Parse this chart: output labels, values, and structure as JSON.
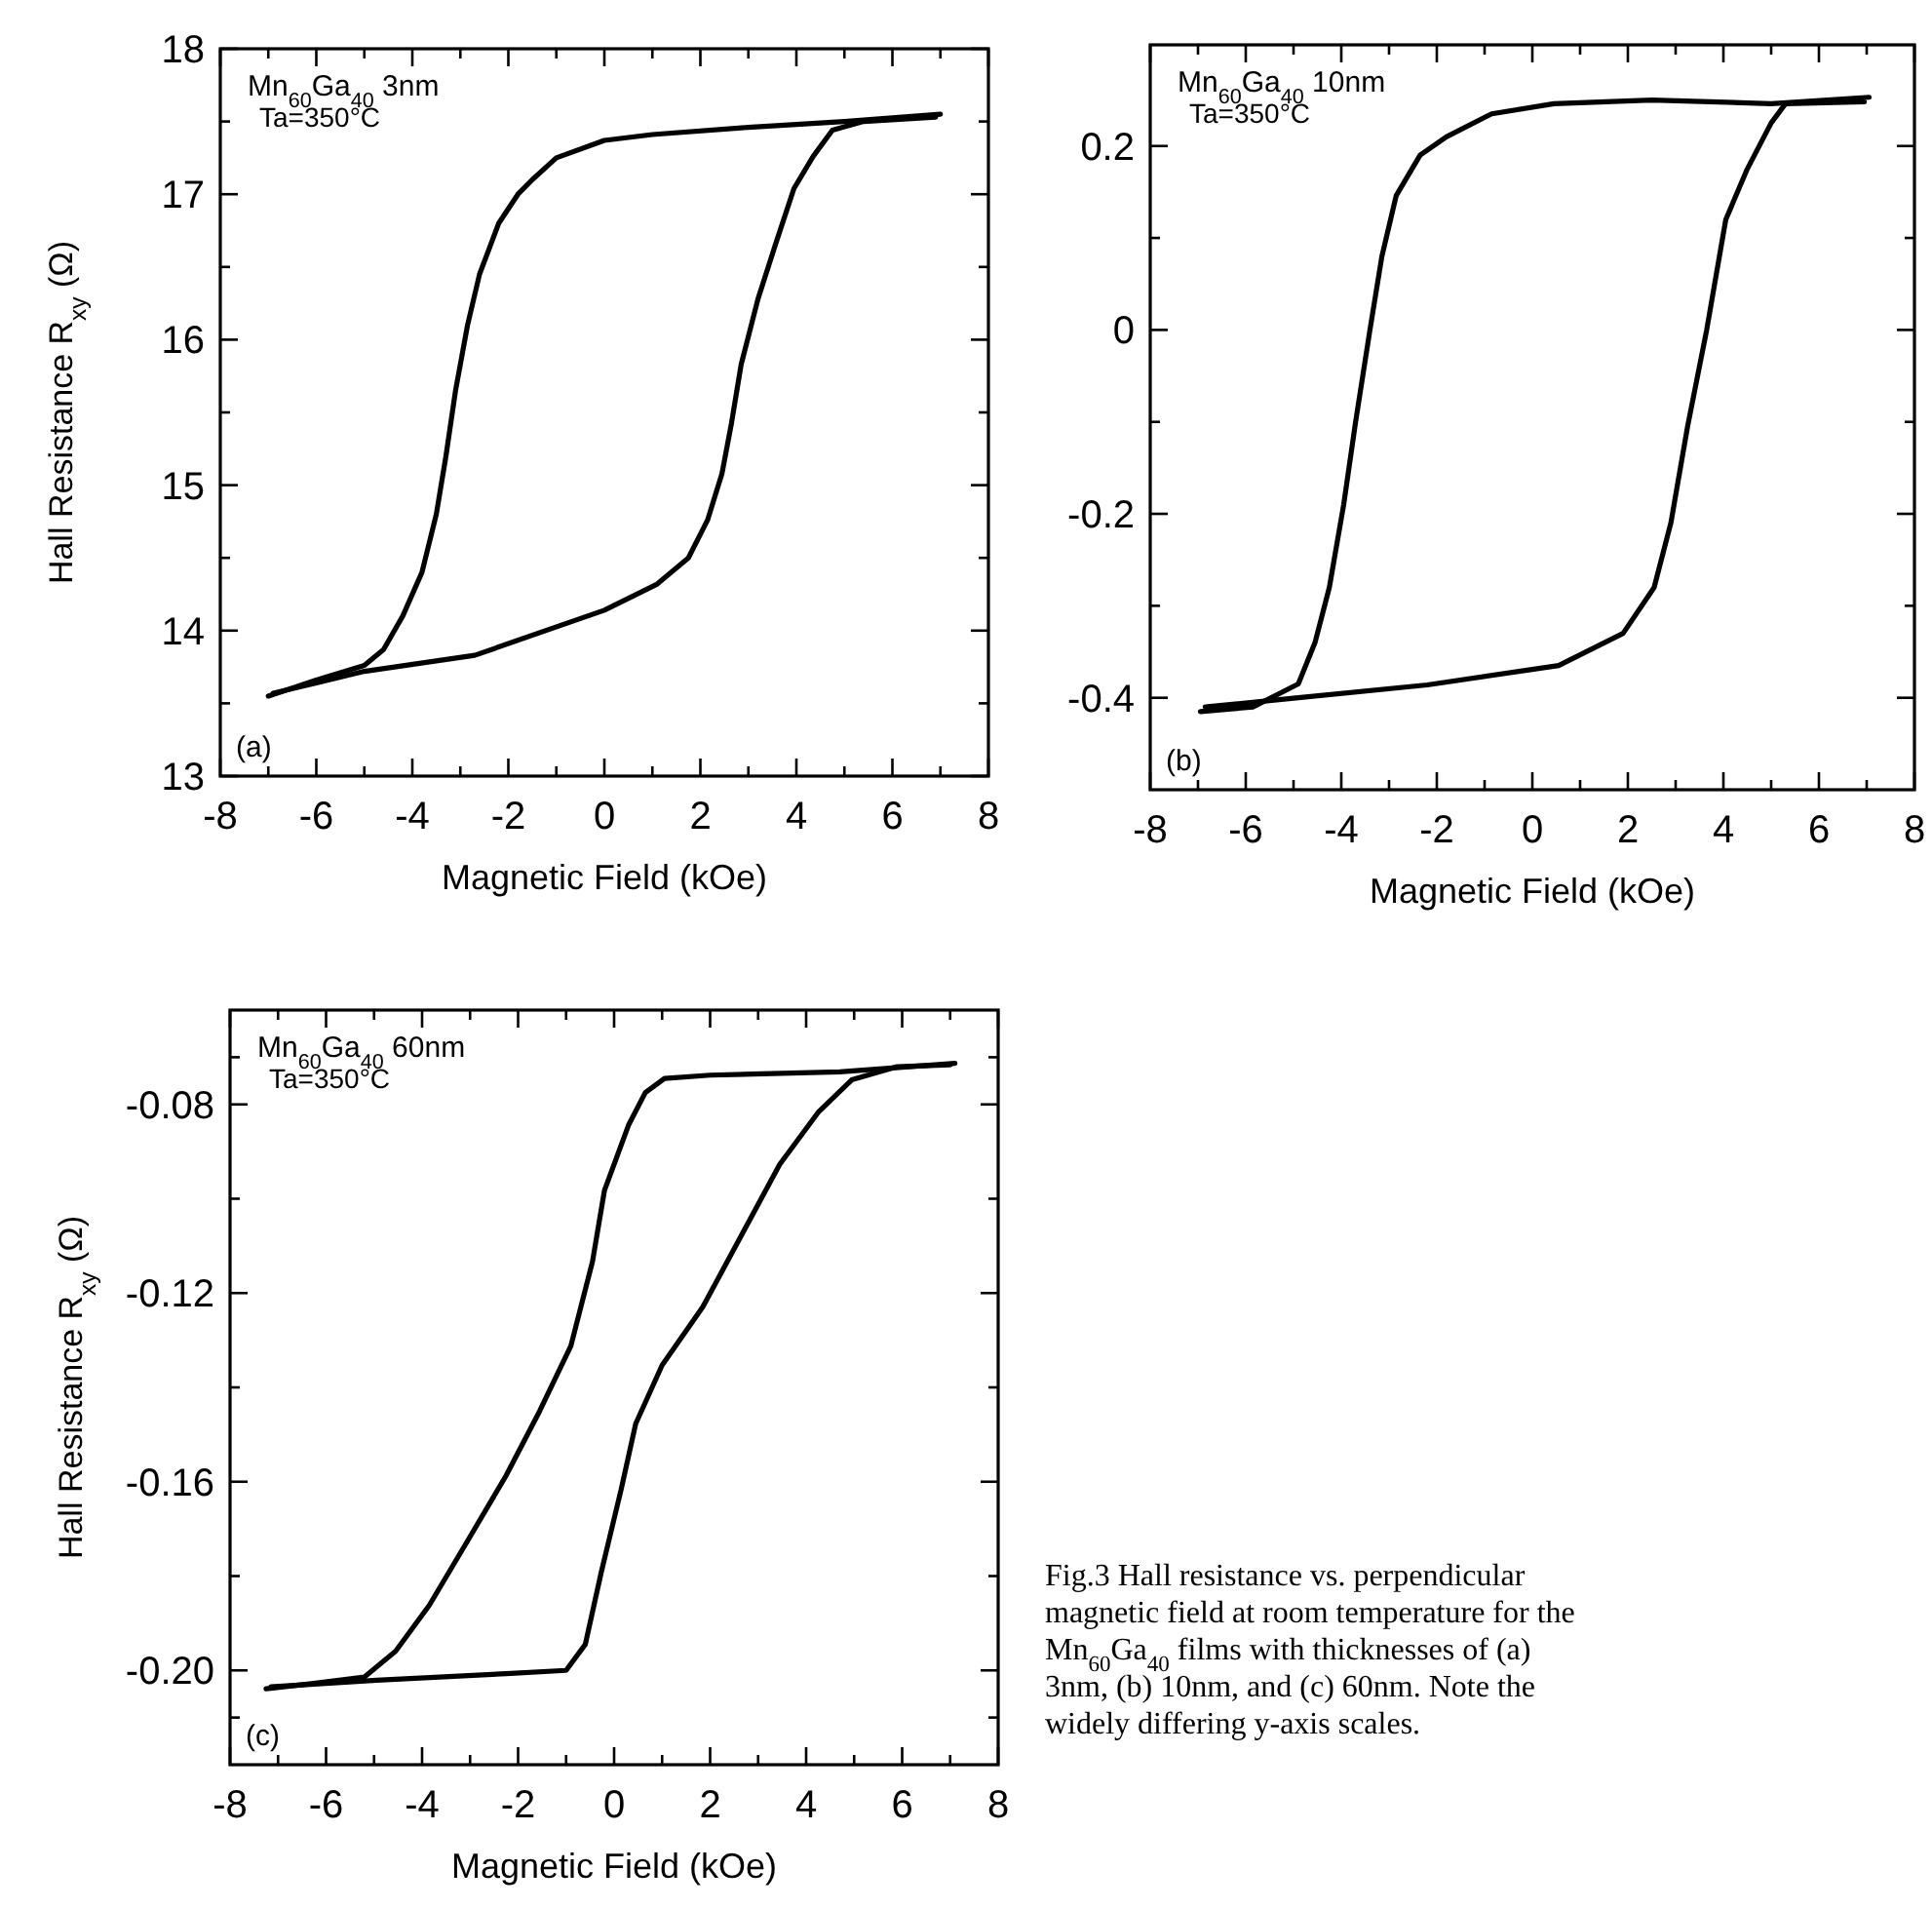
{
  "chart_data": [
    {
      "type": "line",
      "xlabel": "Magnetic Field (kOe)",
      "ylabel": "Hall Resistance R$_{xy}$ (Ω)",
      "annotations": [
        "Mn$_{60}$Ga$_{40}$  3nm",
        "Ta=350°C",
        "(a)"
      ],
      "xlim": [
        -8,
        8
      ],
      "ylim": [
        13,
        18
      ],
      "xticks": [
        -8,
        {
          "value": -7,
          "label": null
        },
        -6,
        {
          "value": -5,
          "label": null
        },
        -4,
        {
          "value": -3,
          "label": null
        },
        -2,
        {
          "value": -1,
          "label": null
        },
        0,
        {
          "value": 1,
          "label": null
        },
        2,
        {
          "value": 3,
          "label": null
        },
        4,
        {
          "value": 5,
          "label": null
        },
        6,
        {
          "value": 7,
          "label": null
        },
        8
      ],
      "yticks": [
        13,
        {
          "value": 13.5,
          "label": null
        },
        14,
        {
          "value": 14.5,
          "label": null
        },
        15,
        {
          "value": 15.5,
          "label": null
        },
        16,
        {
          "value": 16.5,
          "label": null
        },
        17,
        {
          "value": 17.5,
          "label": null
        },
        18
      ],
      "series": [
        {
          "color": "#000000",
          "x": [
            7,
            5,
            3,
            1,
            0,
            -1,
            -1.5,
            -1.8,
            -2.2,
            -2.6,
            -2.85,
            -3.1,
            -3.3,
            -3.5,
            -3.8,
            -4.2,
            -4.6,
            -5,
            -6,
            -7
          ],
          "values": [
            17.55,
            17.5,
            17.46,
            17.41,
            17.37,
            17.25,
            17.1,
            17.0,
            16.8,
            16.45,
            16.1,
            15.65,
            15.2,
            14.8,
            14.4,
            14.1,
            13.87,
            13.76,
            13.66,
            13.55
          ]
        },
        {
          "color": "#000000",
          "x": [
            -6.9,
            -6,
            -5,
            -2.7,
            0,
            1.1,
            1.75,
            2.15,
            2.45,
            2.65,
            2.85,
            3.2,
            3.55,
            3.95,
            4.35,
            4.75,
            5.4,
            6.9
          ],
          "values": [
            13.57,
            13.64,
            13.72,
            13.83,
            14.14,
            14.32,
            14.5,
            14.76,
            15.08,
            15.43,
            15.83,
            16.28,
            16.64,
            17.04,
            17.26,
            17.44,
            17.5,
            17.53
          ]
        }
      ]
    },
    {
      "type": "line",
      "xlabel": "Magnetic Field (kOe)",
      "annotations": [
        "Mn$_{60}$Ga$_{40}$  10nm",
        "Ta=350°C",
        "(b)"
      ],
      "xlim": [
        -8,
        8
      ],
      "ylim": [
        -0.5,
        0.31
      ],
      "xticks": [
        -8,
        {
          "value": -7,
          "label": null
        },
        -6,
        {
          "value": -5,
          "label": null
        },
        -4,
        {
          "value": -3,
          "label": null
        },
        -2,
        {
          "value": -1,
          "label": null
        },
        0,
        {
          "value": 1,
          "label": null
        },
        2,
        {
          "value": 3,
          "label": null
        },
        4,
        {
          "value": 5,
          "label": null
        },
        6,
        {
          "value": 7,
          "label": null
        },
        8
      ],
      "yticks": [
        -0.4,
        {
          "value": -0.3,
          "label": null
        },
        -0.2,
        {
          "value": -0.1,
          "label": null
        },
        0,
        {
          "value": 0.1,
          "label": null
        },
        0.2
      ],
      "series": [
        {
          "color": "#000000",
          "x": [
            7.05,
            5,
            2.5,
            0.45,
            -0.85,
            -1.8,
            -2.35,
            -2.85,
            -3.15,
            -3.4,
            -3.7,
            -3.95,
            -4.25,
            -4.55,
            -4.9,
            -5.85,
            -6.95
          ],
          "values": [
            0.253,
            0.246,
            0.25,
            0.246,
            0.235,
            0.21,
            0.19,
            0.146,
            0.08,
            0,
            -0.1,
            -0.19,
            -0.28,
            -0.34,
            -0.385,
            -0.41,
            -0.415
          ]
        },
        {
          "color": "#000000",
          "x": [
            -6.85,
            -4.9,
            -2.2,
            0.55,
            1.9,
            2.55,
            2.9,
            3.25,
            3.65,
            4.05,
            4.5,
            5,
            5.3,
            6.95
          ],
          "values": [
            -0.41,
            -0.4,
            -0.386,
            -0.365,
            -0.33,
            -0.28,
            -0.21,
            -0.105,
            0,
            0.12,
            0.175,
            0.225,
            0.246,
            0.248
          ]
        }
      ]
    },
    {
      "type": "line",
      "xlabel": "Magnetic Field (kOe)",
      "ylabel": "Hall Resistance R$_{xy}$ (Ω)",
      "annotations": [
        "Mn$_{60}$Ga$_{40}$  60nm",
        "Ta=350°C",
        "(c)",
        "Fig.3 Hall resistance vs. perpendicular magnetic field at room temperature for the Mn$_{60}$Ga$_{40}$ films with thicknesses of (a) 3nm, (b) 10nm, and (c) 60nm.  Note the widely differing y-axis scales."
      ],
      "xlim": [
        -8,
        8
      ],
      "ylim": [
        -0.22,
        -0.06
      ],
      "xticks": [
        -8,
        {
          "value": -7,
          "label": null
        },
        -6,
        {
          "value": -5,
          "label": null
        },
        -4,
        {
          "value": -3,
          "label": null
        },
        -2,
        {
          "value": -1,
          "label": null
        },
        0,
        {
          "value": 1,
          "label": null
        },
        2,
        {
          "value": 3,
          "label": null
        },
        4,
        {
          "value": 5,
          "label": null
        },
        6,
        {
          "value": 7,
          "label": null
        },
        8
      ],
      "yticks": [
        {
          "value": -0.21,
          "label": null
        },
        {
          "value": -0.2,
          "label": "-0.20"
        },
        {
          "value": -0.18,
          "label": null
        },
        -0.16,
        {
          "value": -0.14,
          "label": null
        },
        -0.12,
        {
          "value": -0.1,
          "label": null
        },
        -0.08,
        {
          "value": -0.07,
          "label": null
        }
      ],
      "series": [
        {
          "color": "#000000",
          "x": [
            7.1,
            4.7,
            2,
            1.05,
            0.65,
            0.3,
            -0.2,
            -0.45,
            -0.9,
            -1.55,
            -2.25,
            -3.05,
            -3.85,
            -4.55,
            -5.2,
            -6.3,
            -7.25
          ],
          "values": [
            -0.0713,
            -0.0731,
            -0.0738,
            -0.0745,
            -0.0775,
            -0.0844,
            -0.0982,
            -0.1133,
            -0.1312,
            -0.145,
            -0.1587,
            -0.1725,
            -0.1862,
            -0.1959,
            -0.2014,
            -0.2028,
            -0.2039
          ]
        },
        {
          "color": "#000000",
          "x": [
            -7.15,
            -4.95,
            -2.25,
            -1,
            -0.6,
            -0.27,
            0.15,
            0.45,
            1,
            1.85,
            2.65,
            3.45,
            4.25,
            4.95,
            5.9,
            7
          ],
          "values": [
            -0.2035,
            -0.2021,
            -0.2007,
            -0.2,
            -0.1945,
            -0.1793,
            -0.1615,
            -0.1477,
            -0.1353,
            -0.1229,
            -0.1078,
            -0.0927,
            -0.0817,
            -0.0748,
            -0.072,
            -0.0716
          ]
        }
      ]
    }
  ]
}
